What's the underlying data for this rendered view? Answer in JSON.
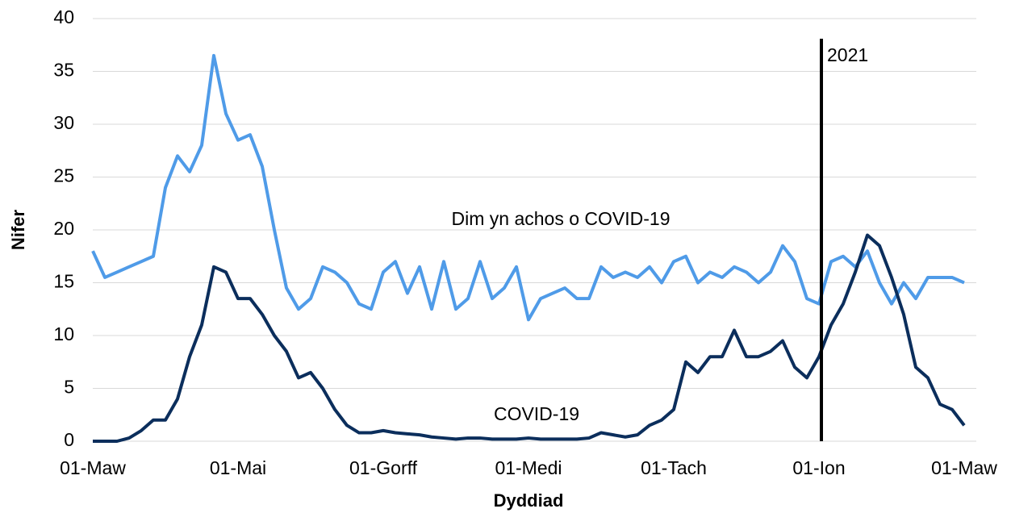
{
  "chart_data": {
    "type": "line",
    "x_label": "Dyddiad",
    "y_label": "Nifer",
    "categories": [
      "01-Maw",
      null,
      null,
      null,
      null,
      null,
      null,
      null,
      null,
      null,
      null,
      null,
      "01-Mai",
      null,
      null,
      null,
      null,
      null,
      null,
      null,
      null,
      null,
      null,
      null,
      "01-Gorff",
      null,
      null,
      null,
      null,
      null,
      null,
      null,
      null,
      null,
      null,
      null,
      "01-Medi",
      null,
      null,
      null,
      null,
      null,
      null,
      null,
      null,
      null,
      null,
      null,
      "01-Tach",
      null,
      null,
      null,
      null,
      null,
      null,
      null,
      null,
      null,
      null,
      null,
      "01-Ion",
      null,
      null,
      null,
      null,
      null,
      null,
      null,
      null,
      null,
      null,
      null,
      "01-Maw"
    ],
    "series": [
      {
        "name": "Dim yn achos o COVID-19",
        "color": "#4f9be8",
        "values": [
          18,
          15.5,
          16,
          16.5,
          17,
          17.5,
          24,
          27,
          25.5,
          28,
          36.5,
          31,
          28.5,
          29,
          26,
          20,
          14.5,
          12.5,
          13.5,
          16.5,
          16,
          15,
          13,
          12.5,
          16,
          17,
          14,
          16.5,
          12.5,
          17,
          12.5,
          13.5,
          17,
          13.5,
          14.5,
          16.5,
          11.5,
          13.5,
          14,
          14.5,
          13.5,
          13.5,
          16.5,
          15.5,
          16,
          15.5,
          16.5,
          15,
          17,
          17.5,
          15,
          16,
          15.5,
          16.5,
          16,
          15,
          16,
          18.5,
          17,
          13.5,
          13,
          17,
          17.5,
          16.5,
          18,
          15,
          13,
          15,
          13.5,
          15.5,
          15.5,
          15.5,
          15
        ]
      },
      {
        "name": "COVID-19",
        "color": "#0b2e5c",
        "values": [
          0,
          0,
          0,
          0.3,
          1,
          2,
          2,
          4,
          8,
          11,
          16.5,
          16,
          13.5,
          13.5,
          12,
          10,
          8.5,
          6,
          6.5,
          5,
          3,
          1.5,
          0.8,
          0.8,
          1,
          0.8,
          0.7,
          0.6,
          0.4,
          0.3,
          0.2,
          0.3,
          0.3,
          0.2,
          0.2,
          0.2,
          0.3,
          0.2,
          0.2,
          0.2,
          0.2,
          0.3,
          0.8,
          0.6,
          0.4,
          0.6,
          1.5,
          2,
          3,
          7.5,
          6.5,
          8,
          8,
          10.5,
          8,
          8,
          8.5,
          9.5,
          7,
          6,
          8,
          11,
          13,
          16,
          19.5,
          18.5,
          15.5,
          12,
          7,
          6,
          3.5,
          3,
          1.5
        ]
      }
    ],
    "ylim": [
      0,
      40
    ],
    "yticks": [
      0,
      5,
      10,
      15,
      20,
      25,
      30,
      35,
      40
    ],
    "grid": true,
    "annotations": [
      {
        "text": "2021",
        "at": "01-Ion"
      }
    ]
  }
}
